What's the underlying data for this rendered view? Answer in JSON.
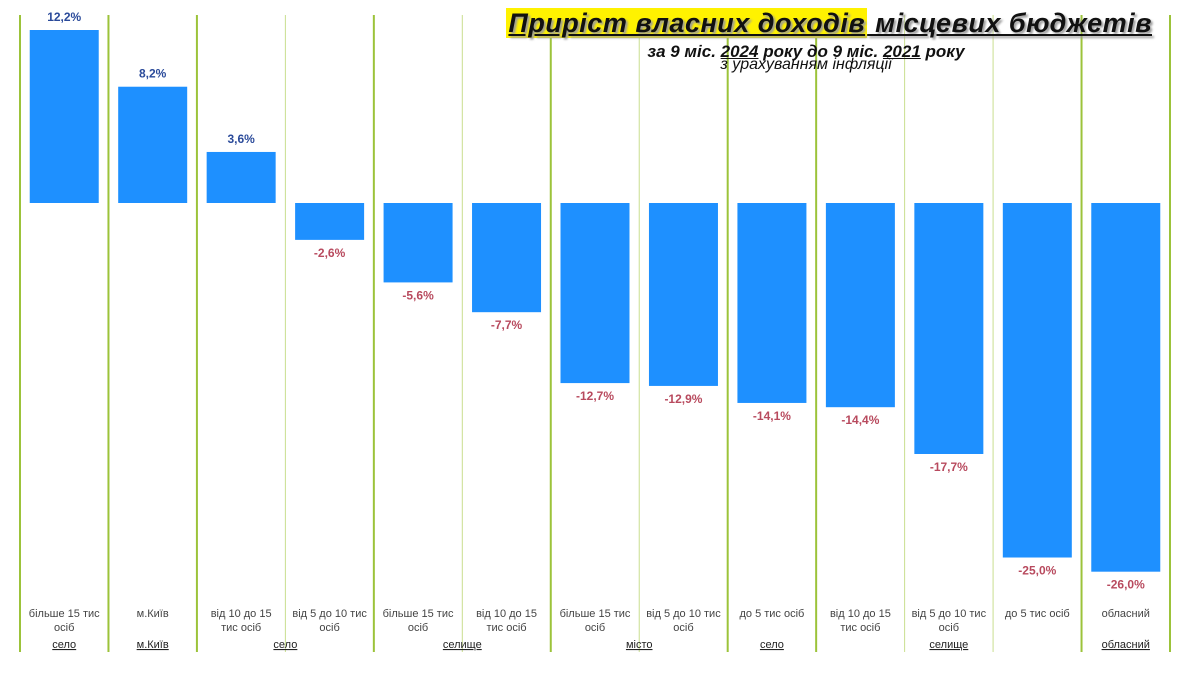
{
  "title": {
    "highlighted": "Приріст власних доходів",
    "rest": " місцевих бюджетів"
  },
  "subtitle": {
    "p1": "за 9 міс. ",
    "year1": "2024",
    "p2": " року до 9 міс. ",
    "year2": "2021",
    "p3": " року"
  },
  "subtitle2": "з урахуванням інфляції",
  "colors": {
    "bar": "#1e90ff",
    "positive_label": "#2a4a9a",
    "negative_label": "#b84a5e",
    "group_divider": "#9cc33a",
    "minor_divider": "#c9de8f",
    "category_text": "#444444",
    "group_text": "#222222"
  },
  "chart_data": {
    "type": "bar",
    "title": "Приріст власних доходів місцевих бюджетів",
    "subtitle": "за 9 міс. 2024 року до 9 міс. 2021 року з урахуванням інфляції",
    "xlabel": "",
    "ylabel": "",
    "categories": [
      [
        "більше 15 тис",
        "осіб"
      ],
      [
        "м.Київ"
      ],
      [
        "від 10 до 15",
        "тис осіб"
      ],
      [
        "від 5 до 10 тис",
        "осіб"
      ],
      [
        "більше 15 тис",
        "осіб"
      ],
      [
        "від 10 до 15",
        "тис осіб"
      ],
      [
        "більше 15 тис",
        "осіб"
      ],
      [
        "від 5 до 10 тис",
        "осіб"
      ],
      [
        "до 5 тис осіб"
      ],
      [
        "від 10 до 15",
        "тис осіб"
      ],
      [
        "від 5 до 10 тис",
        "осіб"
      ],
      [
        "до 5 тис осіб"
      ],
      [
        "обласний"
      ]
    ],
    "groups": [
      "село",
      "м.Київ",
      "село",
      "село",
      "селище",
      "селище",
      "місто",
      "місто",
      "село",
      "селище",
      "селище",
      "селище",
      "обласний"
    ],
    "values": [
      12.2,
      8.2,
      3.6,
      -2.6,
      -5.6,
      -7.7,
      -12.7,
      -12.9,
      -14.1,
      -14.4,
      -17.7,
      -25.0,
      -26.0
    ],
    "value_labels": [
      "12,2%",
      "8,2%",
      "3,6%",
      "-2,6%",
      "-5,6%",
      "-7,7%",
      "-12,7%",
      "-12,9%",
      "-14,1%",
      "-14,4%",
      "-17,7%",
      "-25,0%",
      "-26,0%"
    ],
    "ylim": [
      -26,
      12.2
    ],
    "grid": false,
    "legend": "none"
  }
}
